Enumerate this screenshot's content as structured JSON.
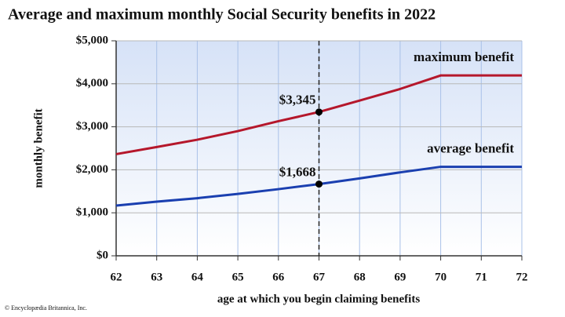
{
  "chart_data": {
    "type": "line",
    "title": "Average and maximum monthly Social Security benefits in 2022",
    "x_label": "age at which you begin claiming benefits",
    "y_label": "monthly benefit",
    "credit": "© Encyclopædia Britannica, Inc.",
    "x": [
      62,
      63,
      64,
      65,
      66,
      67,
      68,
      69,
      70,
      71,
      72
    ],
    "series": [
      {
        "name": "maximum benefit",
        "color": "#b5172b",
        "values": [
          2364,
          2530,
          2700,
          2900,
          3130,
          3345,
          3610,
          3880,
          4194,
          4194,
          4194
        ]
      },
      {
        "name": "average benefit",
        "color": "#1a3fb0",
        "values": [
          1168,
          1260,
          1340,
          1440,
          1550,
          1668,
          1800,
          1940,
          2070,
          2070,
          2070
        ]
      }
    ],
    "annotations": [
      {
        "text": "$3,345",
        "x": 67,
        "y": 3345
      },
      {
        "text": "$1,668",
        "x": 67,
        "y": 1668
      }
    ],
    "reference_line_x": 67,
    "xlim": [
      62,
      72
    ],
    "xticks": [
      62,
      63,
      64,
      65,
      66,
      67,
      68,
      69,
      70,
      71,
      72
    ],
    "ylim": [
      0,
      5000
    ],
    "yticks": [
      {
        "value": 0,
        "label": "$0"
      },
      {
        "value": 1000,
        "label": "$1,000"
      },
      {
        "value": 2000,
        "label": "$2,000"
      },
      {
        "value": 3000,
        "label": "$3,000"
      },
      {
        "value": 4000,
        "label": "$4,000"
      },
      {
        "value": 5000,
        "label": "$5,000"
      }
    ],
    "grid": true
  }
}
